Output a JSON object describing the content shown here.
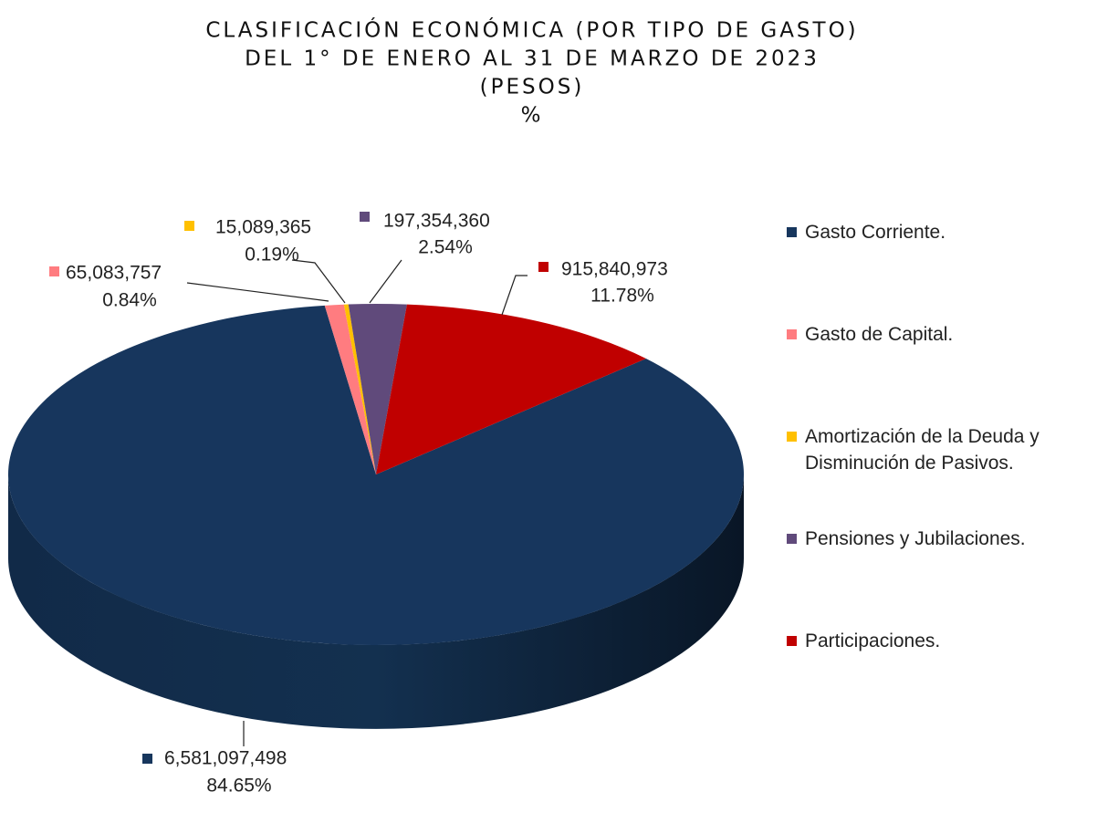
{
  "chart_data": {
    "type": "pie3d",
    "title_lines": [
      "CLASIFICACIÓN ECONÓMICA (POR TIPO DE GASTO)",
      "DEL 1° DE ENERO AL 31 DE MARZO DE 2023",
      "(PESOS)",
      "%"
    ],
    "categories": [
      "Gasto Corriente.",
      "Gasto de Capital.",
      "Amortización de la Deuda y Disminución de Pasivos.",
      "Pensiones y Jubilaciones.",
      "Participaciones."
    ],
    "values": [
      6581097498,
      65083757,
      15089365,
      197354360,
      915840973
    ],
    "value_labels": [
      "6,581,097,498",
      "65,083,757",
      "15,089,365",
      "197,354,360",
      "915,840,973"
    ],
    "percentages": [
      84.65,
      0.84,
      0.19,
      2.54,
      11.78
    ],
    "percentage_labels": [
      "84.65%",
      "0.84%",
      "0.19%",
      "2.54%",
      "11.78%"
    ],
    "colors": [
      "#17365d",
      "#ff7c80",
      "#ffc000",
      "#604a7b",
      "#c00000"
    ],
    "legend": "right"
  }
}
